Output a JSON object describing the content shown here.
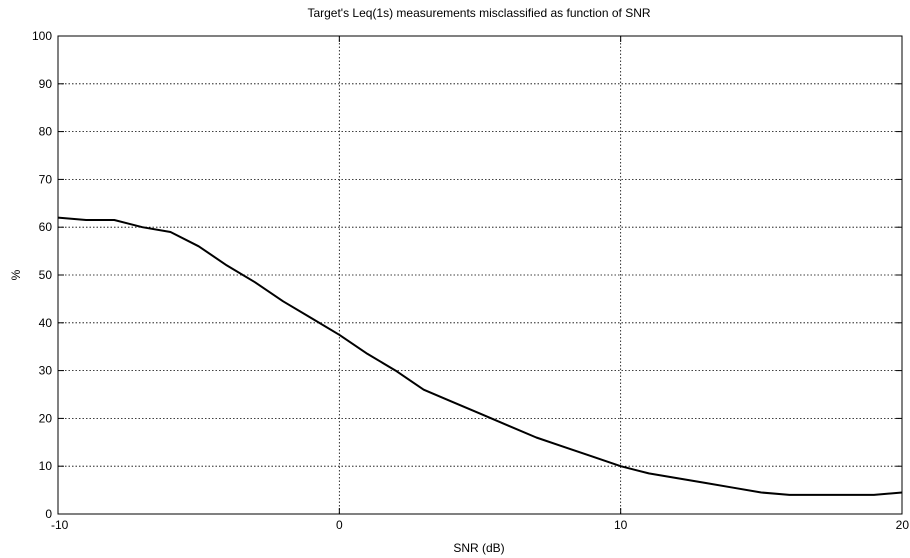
{
  "chart_data": {
    "type": "line",
    "title": "Target's Leq(1s) measurements misclassified as function of SNR",
    "xlabel": "SNR (dB)",
    "ylabel": "%",
    "xlim": [
      -10,
      20
    ],
    "ylim": [
      0,
      100
    ],
    "xticks": [
      -10,
      0,
      10,
      20
    ],
    "yticks": [
      0,
      10,
      20,
      30,
      40,
      50,
      60,
      70,
      80,
      90,
      100
    ],
    "grid": true,
    "series": [
      {
        "x": [
          -10,
          -9,
          -8,
          -7,
          -6,
          -5,
          -4,
          -3,
          -2,
          -1,
          0,
          1,
          2,
          3,
          4,
          5,
          6,
          7,
          8,
          9,
          10,
          11,
          12,
          13,
          14,
          15,
          16,
          17,
          18,
          19,
          20
        ],
        "values": [
          62,
          61.5,
          61.5,
          60,
          59,
          56,
          52,
          48.5,
          44.5,
          41,
          37.5,
          33.5,
          30,
          26,
          23.5,
          21,
          18.5,
          16,
          14,
          12,
          10,
          8.5,
          7.5,
          6.5,
          5.5,
          4.5,
          4,
          4,
          4,
          4,
          4.5
        ],
        "color": "#000000"
      }
    ]
  }
}
